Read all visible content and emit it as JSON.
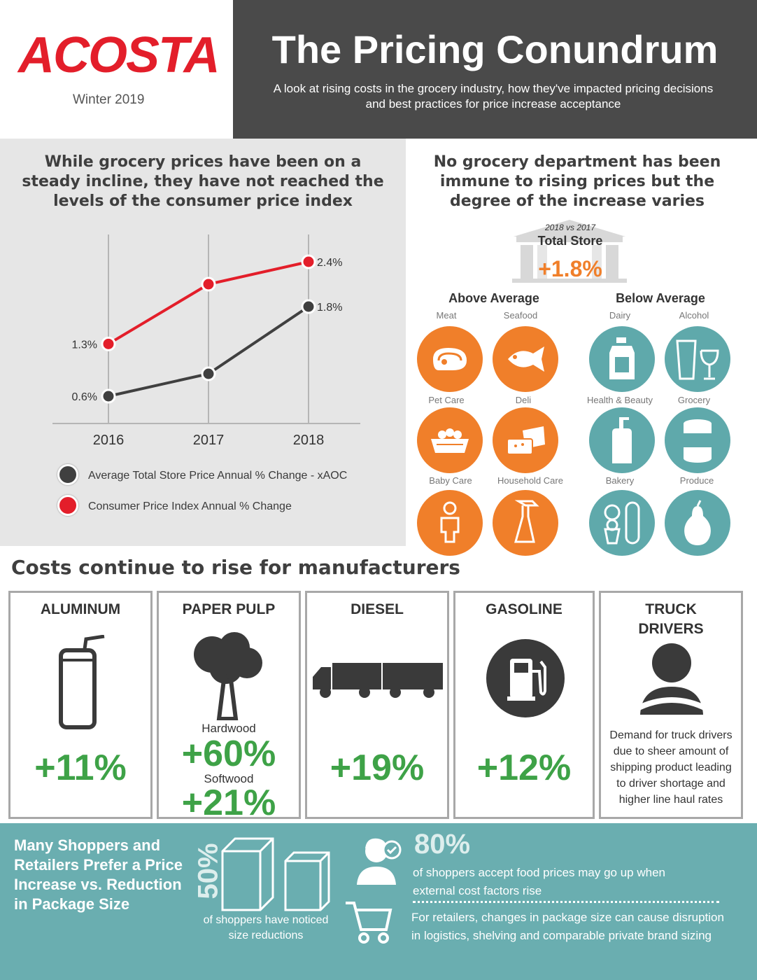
{
  "header": {
    "logo": "ACOSTA",
    "date": "Winter 2019",
    "title": "The Pricing Conundrum",
    "subtitle": "A look at rising costs in the grocery industry, how they've impacted pricing decisions and best practices for price increase acceptance"
  },
  "left_heading": "While grocery prices have been on a steady incline, they have not reached the levels of the consumer price index",
  "right_heading": "No grocery department has been immune to rising prices but the degree of the increase varies",
  "chart_data": {
    "type": "line",
    "categories": [
      "2016",
      "2017",
      "2018"
    ],
    "series": [
      {
        "name": "Average Total Store Price Annual % Change - xAOC",
        "values": [
          0.6,
          0.9,
          1.8
        ],
        "labels": [
          "0.6%",
          "",
          "1.8%"
        ],
        "color": "#404040"
      },
      {
        "name": "Consumer Price Index Annual % Change",
        "values": [
          1.3,
          2.1,
          2.4
        ],
        "labels": [
          "1.3%",
          "",
          "2.4%"
        ],
        "color": "#e31e2a"
      }
    ],
    "ylim": [
      0,
      3
    ],
    "grid": "vertical"
  },
  "store": {
    "period": "2018 vs 2017",
    "label": "Total Store",
    "change": "+1.8%"
  },
  "departments": {
    "above_label": "Above Average",
    "below_label": "Below Average",
    "above": [
      {
        "name": "Meat",
        "icon": "meat-icon"
      },
      {
        "name": "Seafood",
        "icon": "fish-icon"
      },
      {
        "name": "Pet Care",
        "icon": "pet-bowl-icon"
      },
      {
        "name": "Deli",
        "icon": "cheese-icon"
      },
      {
        "name": "Baby Care",
        "icon": "baby-icon"
      },
      {
        "name": "Household Care",
        "icon": "spray-bottle-icon"
      }
    ],
    "below": [
      {
        "name": "Dairy",
        "icon": "milk-jug-icon"
      },
      {
        "name": "Alcohol",
        "icon": "glasses-icon"
      },
      {
        "name": "Health & Beauty",
        "icon": "pump-bottle-icon"
      },
      {
        "name": "Grocery",
        "icon": "can-icon"
      },
      {
        "name": "Bakery",
        "icon": "bread-icon"
      },
      {
        "name": "Produce",
        "icon": "pear-icon"
      }
    ]
  },
  "costs": {
    "heading": "Costs continue to rise for manufacturers",
    "items": [
      {
        "title": "ALUMINUM",
        "value": "+11%"
      },
      {
        "title": "PAPER PULP",
        "hardwood_label": "Hardwood",
        "hardwood_value": "+60%",
        "softwood_label": "Softwood",
        "softwood_value": "+21%"
      },
      {
        "title": "DIESEL",
        "value": "+19%"
      },
      {
        "title": "GASOLINE",
        "value": "+12%"
      },
      {
        "title": "TRUCK DRIVERS",
        "text": "Demand for truck drivers due to sheer amount of shipping product leading to driver shortage and higher line haul rates"
      }
    ]
  },
  "bottom": {
    "heading": "Many Shoppers and Retailers Prefer a Price Increase vs. Reduction in Package Size",
    "stat1": "50%",
    "stat1_text": "of shoppers have noticed size reductions",
    "stat2": "80%",
    "stat2_text": "of shoppers accept food prices may go up when external cost factors rise",
    "retailer_text": "For retailers, changes in package size can cause disruption in logistics, shelving and comparable private brand sizing"
  },
  "colors": {
    "accent": "#e31e2a",
    "orange": "#f07f2a",
    "teal": "#5fa9ab",
    "green": "#3ea247"
  }
}
